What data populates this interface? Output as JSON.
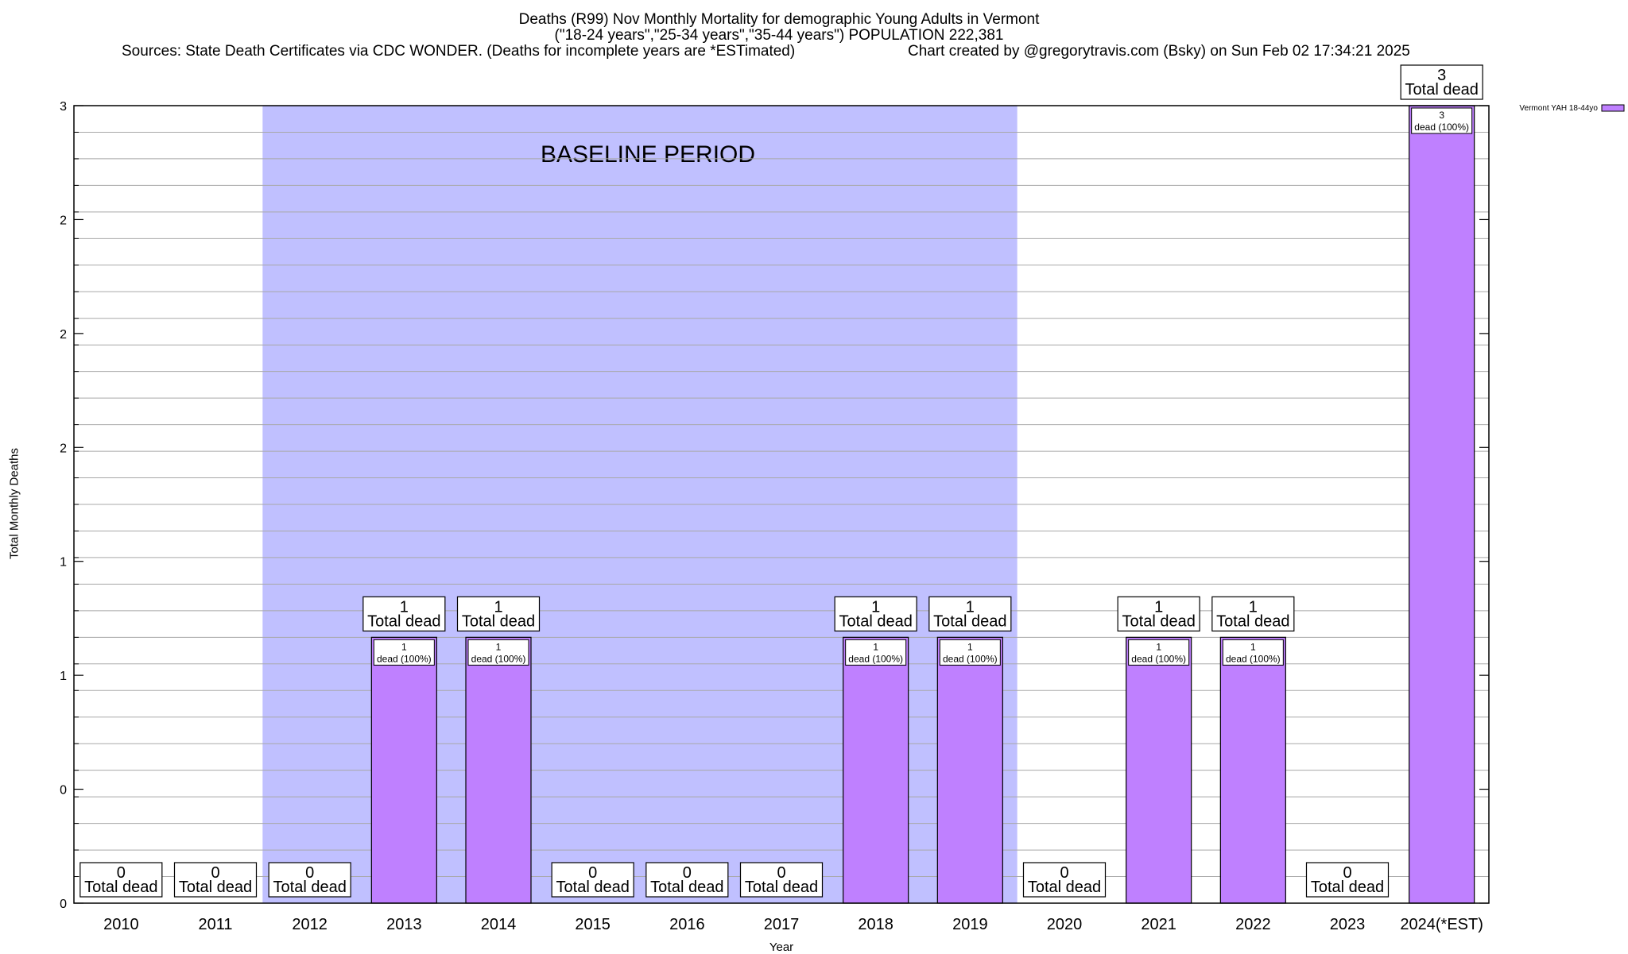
{
  "titles": {
    "line1": "Deaths (R99) Nov Monthly Mortality for demographic Young Adults in Vermont",
    "line2": "(\"18-24 years\",\"25-34 years\",\"35-44 years\") POPULATION 222,381",
    "line3": "Sources: State Death Certificates via CDC WONDER. (Deaths for incomplete years are *ESTimated)",
    "line4": "Chart created by @gregorytravis.com (Bsky) on Sun Feb 02 17:34:21 2025"
  },
  "chart_data": {
    "type": "bar",
    "categories": [
      "2010",
      "2011",
      "2012",
      "2013",
      "2014",
      "2015",
      "2016",
      "2017",
      "2018",
      "2019",
      "2020",
      "2021",
      "2022",
      "2023",
      "2024(*EST)"
    ],
    "series": [
      {
        "name": "Vermont YAH 18-44yo",
        "values": [
          0,
          0,
          0,
          1,
          1,
          0,
          0,
          0,
          1,
          1,
          0,
          1,
          1,
          0,
          3
        ],
        "color": "#bf80ff"
      }
    ],
    "xlabel": "Year",
    "ylabel": "Total Monthly Deaths",
    "ylim": [
      0,
      3
    ],
    "ytick_labels": [
      "0",
      "0",
      "1",
      "1",
      "2",
      "2",
      "2",
      "3"
    ],
    "total_label": "Total dead",
    "inner_label_suffix": "dead (100%)",
    "baseline": {
      "label": "BASELINE PERIOD",
      "start": "2012",
      "end": "2019",
      "color": "#c0c0ff"
    },
    "legend": {
      "placement": "top-right-outside"
    },
    "grid": true
  }
}
